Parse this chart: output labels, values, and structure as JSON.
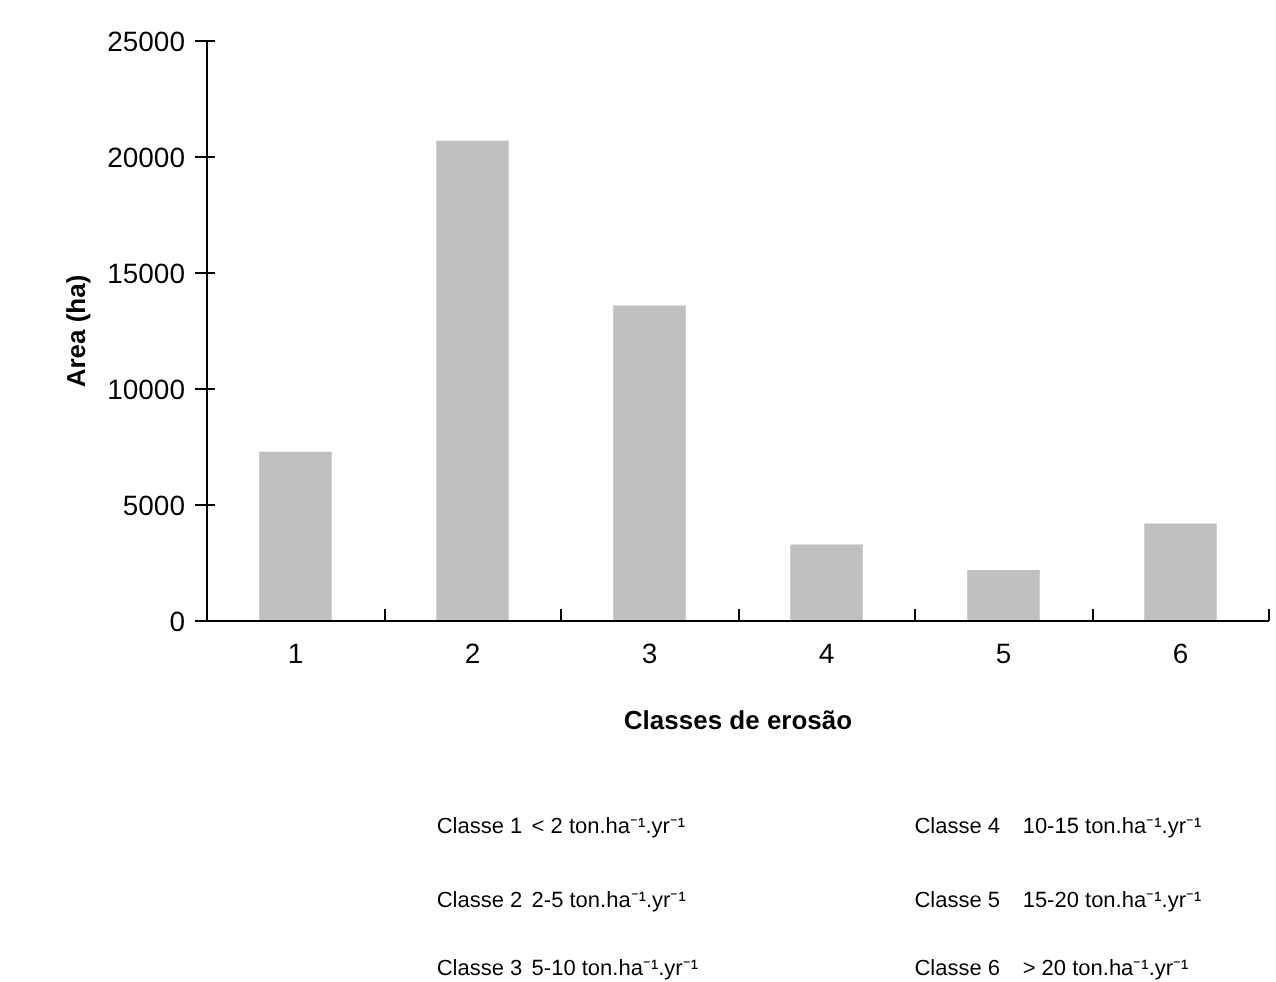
{
  "chart_data": {
    "type": "bar",
    "xlabel": "Classes de erosão",
    "ylabel": "Area (ha)",
    "categories": [
      "1",
      "2",
      "3",
      "4",
      "5",
      "6"
    ],
    "values": [
      7300,
      20700,
      13600,
      3300,
      2200,
      4200
    ],
    "color": "#c0c0c0",
    "ylim": [
      0,
      25000
    ],
    "yticks": [
      0,
      5000,
      10000,
      15000,
      20000,
      25000
    ],
    "grid": false,
    "annotations": [
      "Classe 1",
      "< 2 ton.ha⁻¹.yr⁻¹",
      "Classe 2",
      "2-5 ton.ha⁻¹.yr⁻¹",
      "Classe 3",
      "5-10 ton.ha⁻¹.yr⁻¹",
      "Classe 4",
      "10-15 ton.ha⁻¹.yr⁻¹",
      "Classe 5",
      "15-20 ton.ha⁻¹.yr⁻¹",
      "Classe 6",
      "> 20 ton.ha⁻¹.yr⁻¹"
    ]
  }
}
